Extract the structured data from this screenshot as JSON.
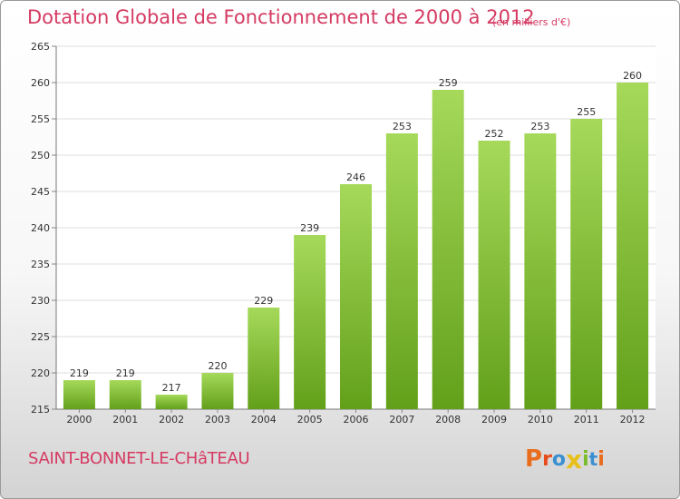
{
  "header": {
    "title": "Dotation Globale de Fonctionnement de 2000 à 2012",
    "unit": "(en milliers d'€)"
  },
  "footer": {
    "commune": "SAINT-BONNET-LE-CHâTEAU",
    "logo_text": "Proxiti"
  },
  "colors": {
    "title": "#d53a62",
    "bar_light": "#a6d95a",
    "bar_dark": "#62a01a",
    "logo": [
      "#e86d1c",
      "#e84c1c",
      "#3a8fd0",
      "#e8c01c",
      "#7abb2a",
      "#3a8fd0",
      "#e86d1c"
    ]
  },
  "chart_data": {
    "type": "bar",
    "title": "Dotation Globale de Fonctionnement de 2000 à 2012",
    "subtitle": "(en milliers d'€)",
    "categories": [
      "2000",
      "2001",
      "2002",
      "2003",
      "2004",
      "2005",
      "2006",
      "2007",
      "2008",
      "2009",
      "2010",
      "2011",
      "2012"
    ],
    "values": [
      219,
      219,
      217,
      220,
      229,
      239,
      246,
      253,
      259,
      252,
      253,
      255,
      260
    ],
    "ylim": [
      215,
      265
    ],
    "yticks": [
      215,
      220,
      225,
      230,
      235,
      240,
      245,
      250,
      255,
      260,
      265
    ],
    "grid": true,
    "legend": "none"
  }
}
